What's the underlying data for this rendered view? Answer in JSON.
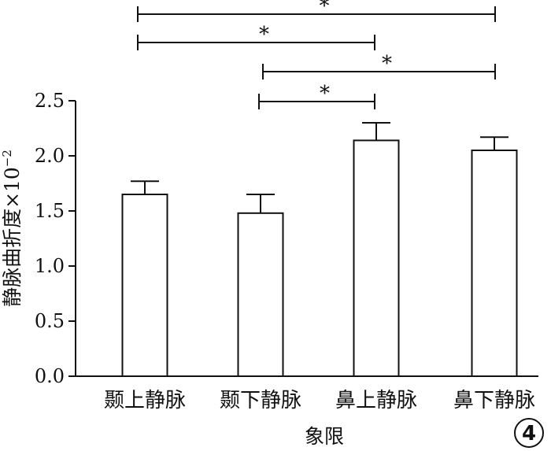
{
  "chart_data": {
    "type": "bar",
    "categories": [
      "颞上静脉",
      "颞下静脉",
      "鼻上静脉",
      "鼻下静脉"
    ],
    "values": [
      1.65,
      1.48,
      2.14,
      2.05
    ],
    "errors": [
      0.12,
      0.17,
      0.16,
      0.12
    ],
    "xlabel": "象限",
    "ylabel": "静脉曲折度×10⁻²",
    "ylabel_main": "静脉曲折度×10",
    "ylabel_exp": "−2",
    "ylim": [
      0,
      2.5
    ],
    "yticks": [
      "0.0",
      "0.5",
      "1.0",
      "1.5",
      "2.0",
      "2.5"
    ],
    "grid": false,
    "significance": [
      {
        "from": 0,
        "to": 3,
        "label": "*"
      },
      {
        "from": 0,
        "to": 2,
        "label": "*"
      },
      {
        "from": 1,
        "to": 3,
        "label": "*"
      },
      {
        "from": 1,
        "to": 2,
        "label": "*"
      }
    ]
  },
  "panel_label": "4"
}
